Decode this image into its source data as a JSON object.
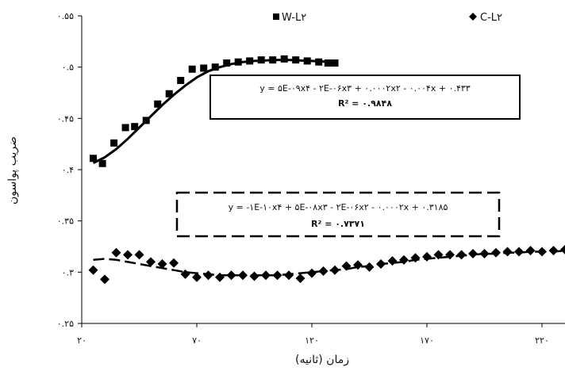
{
  "chart_data": {
    "type": "scatter",
    "title": "",
    "xlabel": "زمان (ثانیه)",
    "ylabel": "ضریب پواسون",
    "xlim": [
      20,
      230
    ],
    "ylim": [
      0.25,
      0.55
    ],
    "x_ticks": [
      20,
      70,
      120,
      170,
      220
    ],
    "x_tick_labels": [
      "۲۰",
      "۷۰",
      "۱۲۰",
      "۱۷۰",
      "۲۲۰"
    ],
    "y_ticks": [
      0.25,
      0.3,
      0.35,
      0.4,
      0.45,
      0.5,
      0.55
    ],
    "y_tick_labels": [
      "۰.۲۵",
      "۰.۳",
      "۰.۳۵",
      "۰.۴",
      "۰.۴۵",
      "۰.۵",
      "۰.۵۵"
    ],
    "legend_position": "top",
    "series": [
      {
        "name": "W-L۲",
        "marker": "square",
        "color": "#000000",
        "points": [
          [
            25,
            0.411
          ],
          [
            29,
            0.406
          ],
          [
            34,
            0.426
          ],
          [
            39,
            0.441
          ],
          [
            43,
            0.442
          ],
          [
            48,
            0.448
          ],
          [
            53,
            0.464
          ],
          [
            58,
            0.474
          ],
          [
            63,
            0.487
          ],
          [
            68,
            0.498
          ],
          [
            73,
            0.499
          ],
          [
            78,
            0.5
          ],
          [
            83,
            0.504
          ],
          [
            88,
            0.505
          ],
          [
            93,
            0.506
          ],
          [
            98,
            0.507
          ],
          [
            103,
            0.507
          ],
          [
            108,
            0.508
          ],
          [
            113,
            0.507
          ],
          [
            118,
            0.506
          ],
          [
            123,
            0.505
          ],
          [
            127,
            0.504
          ],
          [
            130,
            0.504
          ]
        ],
        "trendline": {
          "style": "solid",
          "x_range": [
            25,
            130
          ],
          "equation": "y = ۵E-۰۹x۴ - ۲E-۰۶x۳ + ۰.۰۰۰۲x۲ - ۰.۰۰۴x + ۰.۴۳۳",
          "r2": "R² = ۰.۹۸۴۸",
          "curve": [
            [
              25,
              0.4065
            ],
            [
              30,
              0.412
            ],
            [
              35,
              0.42
            ],
            [
              40,
              0.43
            ],
            [
              45,
              0.441
            ],
            [
              50,
              0.452
            ],
            [
              55,
              0.463
            ],
            [
              60,
              0.473
            ],
            [
              65,
              0.482
            ],
            [
              70,
              0.49
            ],
            [
              75,
              0.496
            ],
            [
              80,
              0.5
            ],
            [
              85,
              0.503
            ],
            [
              90,
              0.505
            ],
            [
              95,
              0.506
            ],
            [
              100,
              0.5065
            ],
            [
              105,
              0.507
            ],
            [
              110,
              0.507
            ],
            [
              115,
              0.5065
            ],
            [
              120,
              0.506
            ],
            [
              125,
              0.5055
            ],
            [
              130,
              0.505
            ]
          ]
        }
      },
      {
        "name": "C-L۲",
        "marker": "diamond",
        "color": "#000000",
        "points": [
          [
            25,
            0.302
          ],
          [
            30,
            0.293
          ],
          [
            35,
            0.319
          ],
          [
            40,
            0.317
          ],
          [
            45,
            0.317
          ],
          [
            50,
            0.31
          ],
          [
            55,
            0.308
          ],
          [
            60,
            0.309
          ],
          [
            65,
            0.298
          ],
          [
            70,
            0.295
          ],
          [
            75,
            0.297
          ],
          [
            80,
            0.295
          ],
          [
            85,
            0.297
          ],
          [
            90,
            0.297
          ],
          [
            95,
            0.296
          ],
          [
            100,
            0.297
          ],
          [
            105,
            0.297
          ],
          [
            110,
            0.297
          ],
          [
            115,
            0.294
          ],
          [
            120,
            0.299
          ],
          [
            125,
            0.301
          ],
          [
            130,
            0.302
          ],
          [
            135,
            0.306
          ],
          [
            140,
            0.307
          ],
          [
            145,
            0.305
          ],
          [
            150,
            0.308
          ],
          [
            155,
            0.311
          ],
          [
            160,
            0.312
          ],
          [
            165,
            0.314
          ],
          [
            170,
            0.315
          ],
          [
            175,
            0.317
          ],
          [
            180,
            0.317
          ],
          [
            185,
            0.317
          ],
          [
            190,
            0.318
          ],
          [
            195,
            0.318
          ],
          [
            200,
            0.319
          ],
          [
            205,
            0.32
          ],
          [
            210,
            0.32
          ],
          [
            215,
            0.321
          ],
          [
            220,
            0.32
          ],
          [
            225,
            0.321
          ],
          [
            230,
            0.322
          ]
        ],
        "trendline": {
          "style": "dashed",
          "x_range": [
            25,
            230
          ],
          "equation": "y = -۱E-۱۰x۴ + ۵E-۰۸x۳ - ۲E-۰۶x۲ - ۰.۰۰۰۲x + ۰.۳۱۸۵",
          "r2": "R² = ۰.۷۳۷۱",
          "curve": [
            [
              25,
              0.312
            ],
            [
              30,
              0.313
            ],
            [
              35,
              0.312
            ],
            [
              40,
              0.31
            ],
            [
              45,
              0.308
            ],
            [
              50,
              0.306
            ],
            [
              55,
              0.304
            ],
            [
              60,
              0.302
            ],
            [
              65,
              0.3
            ],
            [
              70,
              0.299
            ],
            [
              75,
              0.298
            ],
            [
              80,
              0.297
            ],
            [
              85,
              0.297
            ],
            [
              90,
              0.297
            ],
            [
              95,
              0.297
            ],
            [
              100,
              0.297
            ],
            [
              105,
              0.297
            ],
            [
              110,
              0.298
            ],
            [
              115,
              0.299
            ],
            [
              120,
              0.3
            ],
            [
              125,
              0.301
            ],
            [
              130,
              0.302
            ],
            [
              135,
              0.303
            ],
            [
              140,
              0.305
            ],
            [
              145,
              0.306
            ],
            [
              150,
              0.308
            ],
            [
              155,
              0.309
            ],
            [
              160,
              0.31
            ],
            [
              165,
              0.312
            ],
            [
              170,
              0.313
            ],
            [
              175,
              0.314
            ],
            [
              180,
              0.315
            ],
            [
              185,
              0.316
            ],
            [
              190,
              0.317
            ],
            [
              195,
              0.318
            ],
            [
              200,
              0.318
            ],
            [
              205,
              0.319
            ],
            [
              210,
              0.319
            ],
            [
              215,
              0.32
            ],
            [
              220,
              0.32
            ],
            [
              225,
              0.32
            ],
            [
              230,
              0.321
            ]
          ]
        }
      }
    ]
  }
}
